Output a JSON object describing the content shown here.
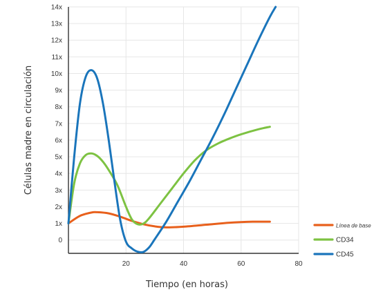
{
  "chart_data": {
    "type": "line",
    "title": "",
    "xlabel": "Tiempo (en horas)",
    "ylabel": "Células madre en circulación",
    "xlim": [
      0,
      80
    ],
    "ylim": [
      -0.8,
      14
    ],
    "x_ticks": [
      {
        "value": 20,
        "label": "20"
      },
      {
        "value": 40,
        "label": "40"
      },
      {
        "value": 60,
        "label": "60"
      },
      {
        "value": 80,
        "label": "80"
      }
    ],
    "y_ticks": [
      {
        "value": 0,
        "label": "0"
      },
      {
        "value": 1,
        "label": "1x"
      },
      {
        "value": 2,
        "label": "2x"
      },
      {
        "value": 3,
        "label": "3x"
      },
      {
        "value": 4,
        "label": "4x"
      },
      {
        "value": 5,
        "label": "5x"
      },
      {
        "value": 6,
        "label": "6x"
      },
      {
        "value": 7,
        "label": "7x"
      },
      {
        "value": 8,
        "label": "8x"
      },
      {
        "value": 9,
        "label": "9x"
      },
      {
        "value": 10,
        "label": "10x"
      },
      {
        "value": 11,
        "label": "11x"
      },
      {
        "value": 12,
        "label": "12x"
      },
      {
        "value": 13,
        "label": "13x"
      },
      {
        "value": 14,
        "label": "14x"
      }
    ],
    "grid": true,
    "legend_position": "bottom-right",
    "series": [
      {
        "name": "Línea de base",
        "color": "#e8601c",
        "x": [
          0,
          4,
          8,
          10,
          14,
          18,
          22,
          26,
          30,
          34,
          40,
          48,
          56,
          64,
          70
        ],
        "y": [
          1.0,
          1.45,
          1.65,
          1.67,
          1.6,
          1.4,
          1.15,
          0.95,
          0.82,
          0.76,
          0.8,
          0.92,
          1.04,
          1.1,
          1.1
        ]
      },
      {
        "name": "CD34",
        "color": "#7dc242",
        "x": [
          0,
          2,
          4,
          6,
          8,
          10,
          12,
          14,
          17,
          20,
          22,
          24,
          26,
          28,
          32,
          36,
          40,
          44,
          48,
          52,
          56,
          60,
          66,
          70
        ],
        "y": [
          1.0,
          3.4,
          4.6,
          5.1,
          5.2,
          5.05,
          4.7,
          4.2,
          3.3,
          2.0,
          1.25,
          0.95,
          0.98,
          1.3,
          2.2,
          3.1,
          4.0,
          4.8,
          5.4,
          5.8,
          6.1,
          6.35,
          6.65,
          6.8
        ]
      },
      {
        "name": "CD45",
        "color": "#1a75bb",
        "x": [
          0,
          2,
          4,
          6,
          8,
          10,
          12,
          14,
          16,
          18,
          20,
          22,
          24,
          26,
          28,
          30,
          34,
          38,
          42,
          46,
          50,
          54,
          58,
          62,
          66,
          70,
          72
        ],
        "y": [
          1.0,
          5.0,
          8.2,
          9.8,
          10.2,
          9.7,
          8.2,
          6.0,
          3.5,
          1.2,
          -0.1,
          -0.5,
          -0.7,
          -0.72,
          -0.45,
          0.05,
          1.1,
          2.3,
          3.5,
          4.8,
          6.1,
          7.5,
          9.0,
          10.5,
          12.0,
          13.4,
          14.0
        ]
      }
    ]
  }
}
